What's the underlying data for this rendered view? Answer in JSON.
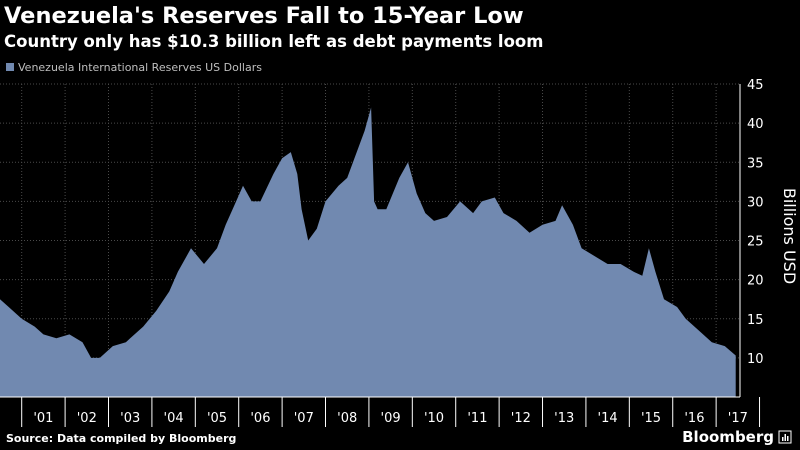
{
  "chart_data": {
    "type": "area",
    "title": "Venezuela's Reserves Fall to 15-Year Low",
    "subtitle": "Country only has $10.3 billion left as debt payments loom",
    "legend": [
      {
        "label": "Venezuela International Reserves US Dollars",
        "color": "#7189b0"
      }
    ],
    "ylabel": "Billions USD",
    "ylim": [
      5,
      45
    ],
    "yticks": [
      10,
      15,
      20,
      25,
      30,
      35,
      40,
      45
    ],
    "xlim": [
      2000.0,
      2017.05
    ],
    "x_tick_labels": [
      {
        "label": "'01",
        "x": 2001.0
      },
      {
        "label": "'02",
        "x": 2002.0
      },
      {
        "label": "'03",
        "x": 2003.0
      },
      {
        "label": "'04",
        "x": 2004.0
      },
      {
        "label": "'05",
        "x": 2005.0
      },
      {
        "label": "'06",
        "x": 2006.0
      },
      {
        "label": "'07",
        "x": 2007.0
      },
      {
        "label": "'08",
        "x": 2008.0
      },
      {
        "label": "'09",
        "x": 2009.0
      },
      {
        "label": "'10",
        "x": 2010.0
      },
      {
        "label": "'11",
        "x": 2011.0
      },
      {
        "label": "'12",
        "x": 2012.0
      },
      {
        "label": "'13",
        "x": 2013.0
      },
      {
        "label": "'14",
        "x": 2014.0
      },
      {
        "label": "'15",
        "x": 2015.0
      },
      {
        "label": "'16",
        "x": 2016.0
      },
      {
        "label": "'17",
        "x": 2017.0
      }
    ],
    "series": [
      {
        "name": "Venezuela International Reserves US Dollars",
        "color": "#7189b0",
        "x": [
          2000.0,
          2000.2,
          2000.5,
          2000.8,
          2001.0,
          2001.3,
          2001.6,
          2001.9,
          2002.1,
          2002.3,
          2002.6,
          2002.9,
          2003.0,
          2003.3,
          2003.6,
          2003.9,
          2004.1,
          2004.4,
          2004.7,
          2005.0,
          2005.2,
          2005.4,
          2005.6,
          2005.8,
          2006.0,
          2006.3,
          2006.5,
          2006.7,
          2006.85,
          2006.95,
          2007.1,
          2007.3,
          2007.5,
          2007.8,
          2008.0,
          2008.2,
          2008.4,
          2008.55,
          2008.62,
          2008.7,
          2008.9,
          2009.2,
          2009.4,
          2009.6,
          2009.8,
          2010.0,
          2010.3,
          2010.6,
          2010.9,
          2011.1,
          2011.4,
          2011.6,
          2011.9,
          2012.2,
          2012.5,
          2012.8,
          2012.95,
          2013.2,
          2013.4,
          2013.7,
          2014.0,
          2014.3,
          2014.6,
          2014.8,
          2014.95,
          2015.1,
          2015.3,
          2015.6,
          2015.8,
          2016.1,
          2016.4,
          2016.7,
          2016.95
        ],
        "values": [
          17.5,
          16.5,
          15.0,
          14.0,
          13.0,
          12.5,
          13.0,
          12.0,
          10.0,
          10.0,
          11.5,
          12.0,
          12.5,
          14.0,
          16.0,
          18.5,
          21.0,
          24.0,
          22.0,
          24.0,
          27.0,
          29.5,
          32.0,
          30.0,
          30.0,
          33.5,
          35.5,
          36.3,
          33.5,
          29.0,
          25.0,
          26.5,
          30.0,
          32.0,
          33.0,
          36.0,
          39.0,
          42.0,
          30.0,
          29.0,
          29.0,
          33.0,
          35.0,
          31.0,
          28.5,
          27.5,
          28.0,
          30.0,
          28.5,
          30.0,
          30.5,
          28.5,
          27.5,
          26.0,
          27.0,
          27.5,
          29.5,
          27.0,
          24.0,
          23.0,
          22.0,
          22.0,
          21.0,
          20.5,
          24.0,
          21.0,
          17.5,
          16.5,
          15.0,
          13.5,
          12.0,
          11.5,
          10.3
        ]
      }
    ]
  },
  "footer": {
    "source": "Source: Data compiled by Bloomberg",
    "brand": "Bloomberg"
  }
}
